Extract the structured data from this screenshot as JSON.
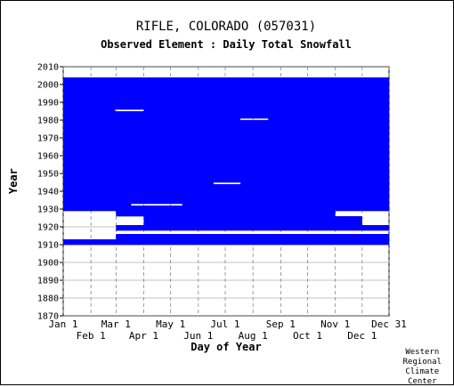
{
  "chart_data": {
    "type": "heatmap",
    "title": "RIFLE, COLORADO    (057031)",
    "subtitle": "Observed Element : Daily Total Snowfall",
    "xlabel": "Day of Year",
    "ylabel": "Year",
    "ylim": [
      1870,
      2010
    ],
    "yticks": [
      "2010",
      "2000",
      "1990",
      "1980",
      "1970",
      "1960",
      "1950",
      "1940",
      "1930",
      "1920",
      "1910",
      "1900",
      "1890",
      "1880",
      "1870"
    ],
    "xticks_top": [
      "Jan 1",
      "Mar 1",
      "May 1",
      "Jul 1",
      "Sep 1",
      "Nov 1",
      "Dec 31"
    ],
    "xticks_bottom": [
      "Feb 1",
      "Apr 1",
      "Jun 1",
      "Aug 1",
      "Oct 1",
      "Dec 1"
    ],
    "grid": true,
    "data_color": "#0000ff",
    "coverage": [
      {
        "from_year": 1910,
        "to_year": 1929,
        "note": "partial"
      },
      {
        "from_year": 1929,
        "to_year": 2004,
        "note": "mostly complete"
      }
    ]
  },
  "credit": "Western\nRegional\nClimate\nCenter"
}
